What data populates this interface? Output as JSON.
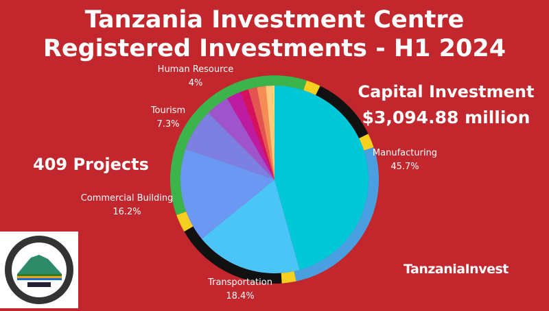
{
  "title_line1": "Tanzania Investment Centre",
  "title_line2": "Registered Investments - H1 2024",
  "capital_label": "Capital Investment",
  "capital_value": "$3,094.88 million",
  "projects": "409 Projects",
  "logo_text": "TANZANIA INVESTMENT CENTRE - THE FACILITATOR",
  "brand": "TanzaniaInvest",
  "chart_data": {
    "type": "pie",
    "start": "top, clockwise",
    "slices": [
      {
        "name": "Manufacturing",
        "value": 45.7,
        "label": "45.7%",
        "color": "#00c8d8"
      },
      {
        "name": "Transportation",
        "value": 18.4,
        "label": "18.4%",
        "color": "#4bc4f8"
      },
      {
        "name": "Commercial Building",
        "value": 16.2,
        "label": "16.2%",
        "color": "#6a98f2"
      },
      {
        "name": "Tourism",
        "value": 7.3,
        "label": "7.3%",
        "color": "#7d80e2"
      },
      {
        "name": "Human Resource",
        "value": 4,
        "label": "4%",
        "color": "#9e55cc"
      },
      {
        "value": 2.5,
        "color": "#bd1ca0"
      },
      {
        "value": 1.4,
        "color": "#d5105c"
      },
      {
        "value": 1.5,
        "color": "#e25550"
      },
      {
        "value": 1.5,
        "color": "#f48c55"
      },
      {
        "value": 1.2,
        "color": "#fdc97c"
      },
      {
        "value": 0.3,
        "color": "#f2e070"
      }
    ]
  }
}
